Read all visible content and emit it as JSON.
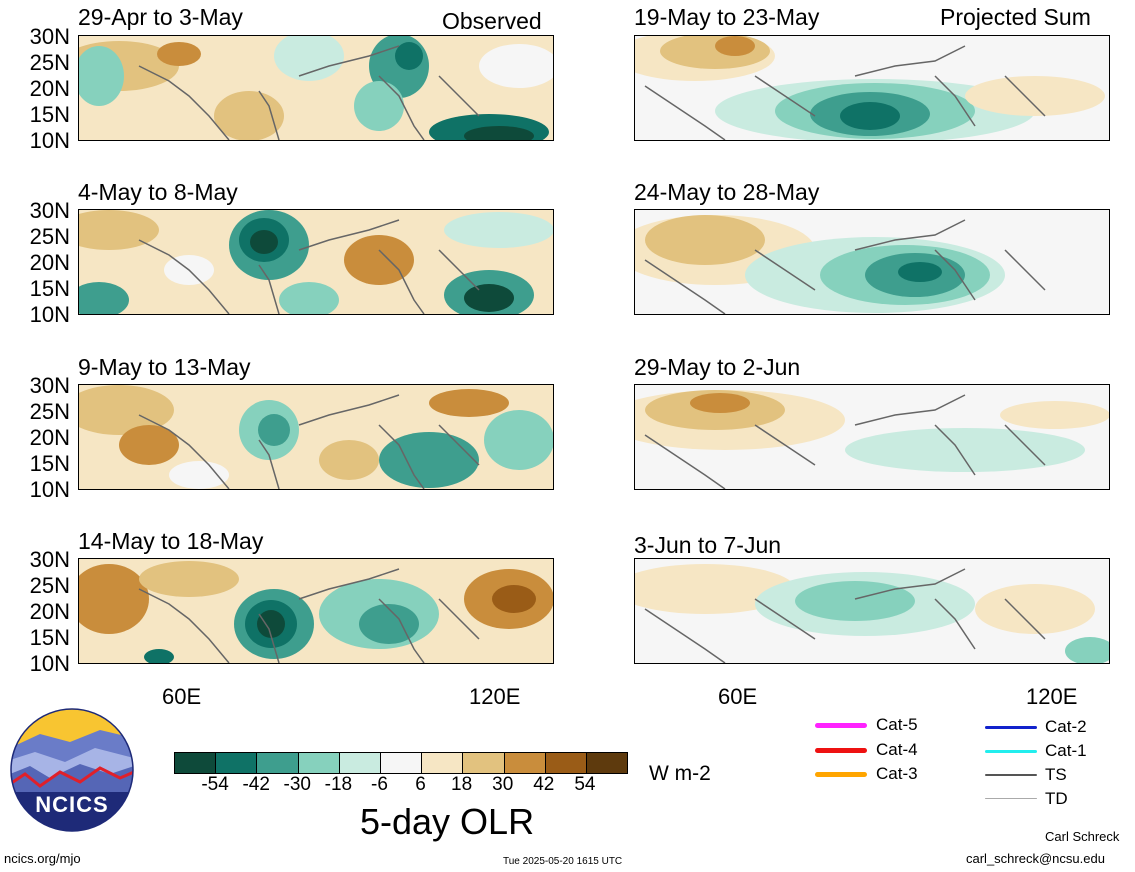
{
  "labels": {
    "observed": "Observed",
    "projected": "Projected Sum",
    "lat_ticks": [
      "30N",
      "25N",
      "20N",
      "15N",
      "10N"
    ],
    "lon_ticks": [
      "60E",
      "120E"
    ]
  },
  "panels_left": [
    {
      "title": "29-Apr to 3-May"
    },
    {
      "title": "4-May to 8-May"
    },
    {
      "title": "9-May to 13-May"
    },
    {
      "title": "14-May to 18-May"
    }
  ],
  "panels_right": [
    {
      "title": "19-May to 23-May"
    },
    {
      "title": "24-May to 28-May"
    },
    {
      "title": "29-May to 2-Jun"
    },
    {
      "title": "3-Jun to 7-Jun"
    }
  ],
  "colorbar": {
    "colors": [
      "#0e4a3a",
      "#0f7266",
      "#3e9e8e",
      "#86d1bd",
      "#c9ebe0",
      "#f6f6f6",
      "#f6e6c4",
      "#e2c27f",
      "#c98d3c",
      "#9a5c17",
      "#5e3a0d"
    ],
    "tick_labels": [
      "-54",
      "-42",
      "-30",
      "-18",
      "-6",
      "6",
      "18",
      "30",
      "42",
      "54"
    ],
    "units": "W m-2",
    "title": "5-day OLR"
  },
  "legend": {
    "items": [
      {
        "label": "Cat-5",
        "color": "#ff22ff"
      },
      {
        "label": "Cat-4",
        "color": "#ee1111"
      },
      {
        "label": "Cat-3",
        "color": "#ffa500"
      },
      {
        "label": "Cat-2",
        "color": "#1122cc"
      },
      {
        "label": "Cat-1",
        "color": "#22eeee"
      },
      {
        "label": "TS",
        "color": "#555555"
      },
      {
        "label": "TD",
        "color": "#aaaaaa"
      }
    ]
  },
  "logo": {
    "text": "NCICS"
  },
  "footer": {
    "url": "ncics.org/mjo",
    "timestamp": "Tue 2025-05-20 1615 UTC",
    "author": "Carl Schreck",
    "email": "carl_schreck@ncsu.edu"
  }
}
